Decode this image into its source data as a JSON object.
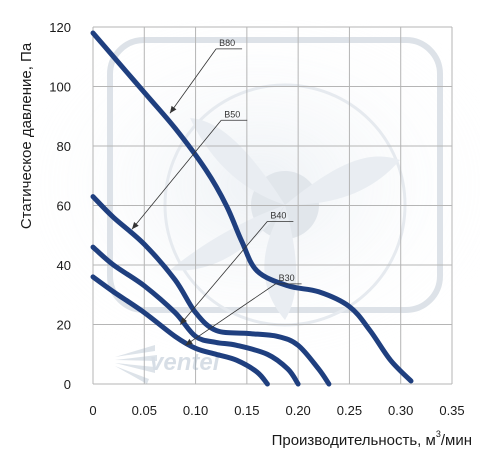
{
  "chart_data": {
    "type": "line",
    "xlabel_main": "Производительность, м",
    "xlabel_sup": "3",
    "xlabel_tail": "/мин",
    "ylabel": "Статическое давление, Па",
    "xlim": [
      0,
      0.35
    ],
    "ylim": [
      0,
      120
    ],
    "x_ticks": [
      "0",
      "0.05",
      "0.10",
      "0.15",
      "0.20",
      "0.25",
      "0.30",
      "0.35"
    ],
    "y_ticks": [
      "0",
      "20",
      "40",
      "60",
      "80",
      "100",
      "120"
    ],
    "grid": true,
    "watermark": "ventel",
    "colors": {
      "curve": "#1f3f7f",
      "grid": "#b5b5b5"
    },
    "series": [
      {
        "name": "B80",
        "x": [
          0,
          0.02,
          0.05,
          0.08,
          0.11,
          0.13,
          0.145,
          0.16,
          0.19,
          0.22,
          0.25,
          0.27,
          0.29,
          0.31
        ],
        "y": [
          118,
          110,
          98,
          86,
          72,
          60,
          48,
          38,
          33,
          31,
          26,
          18,
          8,
          1
        ]
      },
      {
        "name": "B50",
        "x": [
          0,
          0.02,
          0.05,
          0.08,
          0.1,
          0.12,
          0.15,
          0.18,
          0.2,
          0.22,
          0.23
        ],
        "y": [
          63,
          56,
          47,
          35,
          24,
          18,
          17,
          16,
          13,
          5,
          0
        ]
      },
      {
        "name": "B40",
        "x": [
          0,
          0.02,
          0.05,
          0.08,
          0.1,
          0.12,
          0.14,
          0.17,
          0.19,
          0.2
        ],
        "y": [
          46,
          40,
          33,
          24,
          16,
          14,
          13,
          10,
          5,
          0
        ]
      },
      {
        "name": "B30",
        "x": [
          0,
          0.02,
          0.05,
          0.08,
          0.1,
          0.12,
          0.14,
          0.16,
          0.17
        ],
        "y": [
          36,
          31,
          24,
          16,
          12,
          10,
          8,
          4,
          0
        ]
      }
    ],
    "callouts": [
      {
        "series": "B80",
        "label": "B80",
        "at_x": 0.075,
        "at_y": 91,
        "text_x": 0.12,
        "text_y": 114
      },
      {
        "series": "B50",
        "label": "B50",
        "at_x": 0.038,
        "at_y": 52,
        "text_x": 0.125,
        "text_y": 90
      },
      {
        "series": "B40",
        "label": "B40",
        "at_x": 0.085,
        "at_y": 20,
        "text_x": 0.17,
        "text_y": 56
      },
      {
        "series": "B30",
        "label": "B30",
        "at_x": 0.09,
        "at_y": 13,
        "text_x": 0.178,
        "text_y": 35
      }
    ]
  }
}
